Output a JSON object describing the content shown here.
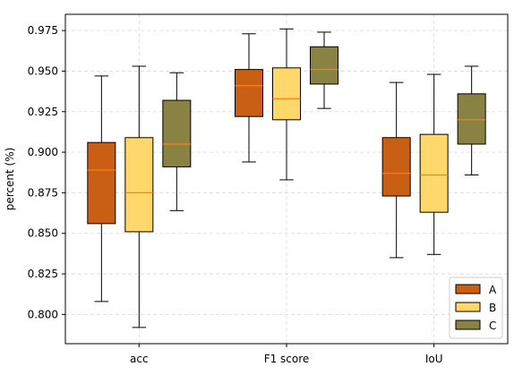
{
  "chart_data": {
    "type": "box",
    "title": "",
    "xlabel": "",
    "ylabel": "percent (%)",
    "categories": [
      "acc",
      "F1 score",
      "IoU"
    ],
    "ylim": [
      0.782,
      0.985
    ],
    "yticks": [
      "0.800",
      "0.825",
      "0.850",
      "0.875",
      "0.900",
      "0.925",
      "0.950",
      "0.975"
    ],
    "ytick_values": [
      0.8,
      0.825,
      0.85,
      0.875,
      0.9,
      0.925,
      0.95,
      0.975
    ],
    "grid": true,
    "legend_position": "bottom-right",
    "median_color": "#ff7f0e",
    "series": [
      {
        "name": "A",
        "color": "#c95f14",
        "boxes": [
          {
            "whislo": 0.808,
            "q1": 0.856,
            "med": 0.889,
            "q3": 0.906,
            "whishi": 0.947
          },
          {
            "whislo": 0.894,
            "q1": 0.922,
            "med": 0.941,
            "q3": 0.951,
            "whishi": 0.973
          },
          {
            "whislo": 0.835,
            "q1": 0.873,
            "med": 0.887,
            "q3": 0.909,
            "whishi": 0.943
          }
        ]
      },
      {
        "name": "B",
        "color": "#fed86a",
        "boxes": [
          {
            "whislo": 0.792,
            "q1": 0.851,
            "med": 0.875,
            "q3": 0.909,
            "whishi": 0.953
          },
          {
            "whislo": 0.883,
            "q1": 0.92,
            "med": 0.933,
            "q3": 0.952,
            "whishi": 0.976
          },
          {
            "whislo": 0.837,
            "q1": 0.863,
            "med": 0.886,
            "q3": 0.911,
            "whishi": 0.948
          }
        ]
      },
      {
        "name": "C",
        "color": "#898242",
        "boxes": [
          {
            "whislo": 0.864,
            "q1": 0.891,
            "med": 0.905,
            "q3": 0.932,
            "whishi": 0.949
          },
          {
            "whislo": 0.927,
            "q1": 0.942,
            "med": 0.951,
            "q3": 0.965,
            "whishi": 0.974
          },
          {
            "whislo": 0.886,
            "q1": 0.905,
            "med": 0.92,
            "q3": 0.936,
            "whishi": 0.953
          }
        ]
      }
    ]
  }
}
